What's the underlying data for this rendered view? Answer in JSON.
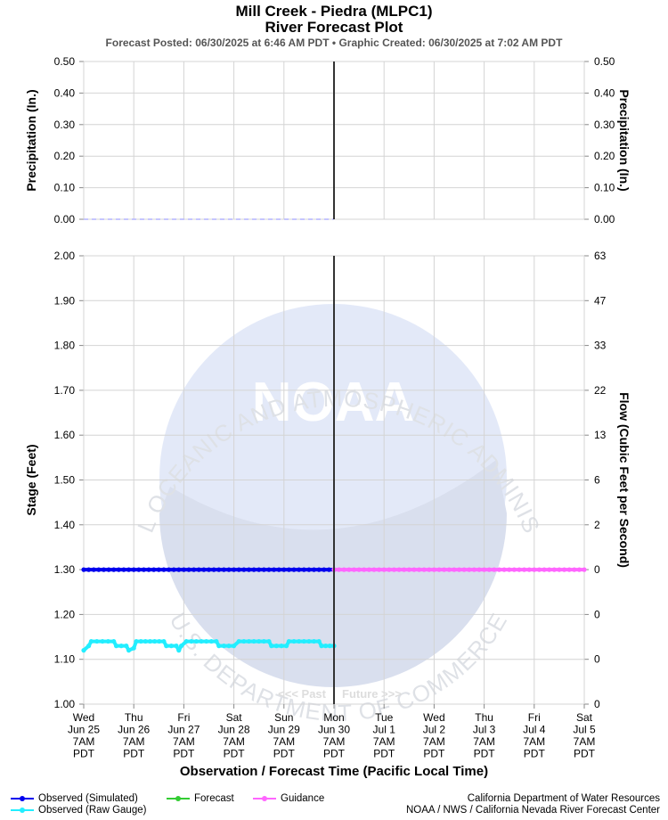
{
  "header": {
    "title": "Mill Creek - Piedra (MLPC1)",
    "subtitle": "River Forecast Plot",
    "posted_label": "Forecast Posted: 06/30/2025 at 6:46 AM PDT",
    "bullet": "•",
    "created_label": "Graphic Created: 06/30/2025 at 7:02 AM PDT"
  },
  "chart_data": [
    {
      "type": "line",
      "panel": "precipitation",
      "ylabel_left": "Precipitation (In.)",
      "ylabel_right": "Precipitation (In.)",
      "ylim": [
        0,
        0.5
      ],
      "yticks": [
        "0.00",
        "0.10",
        "0.20",
        "0.30",
        "0.40",
        "0.50"
      ],
      "grid": true,
      "series": [
        {
          "values": [
            [
              0,
              0
            ],
            [
              5,
              0
            ]
          ],
          "color": "#b4b4ff",
          "style": "dashed"
        }
      ]
    },
    {
      "type": "line",
      "panel": "stage",
      "ylabel_left": "Stage (Feet)",
      "ylabel_right": "Flow (Cubic Feet per Second)",
      "xlabel": "Observation / Forecast Time (Pacific Local Time)",
      "ylim": [
        1.0,
        2.0
      ],
      "yticks": [
        "1.00",
        "1.10",
        "1.20",
        "1.30",
        "1.40",
        "1.50",
        "1.60",
        "1.70",
        "1.80",
        "1.90",
        "2.00"
      ],
      "yticks_right": [
        "0",
        "0",
        "0",
        "0",
        "2",
        "6",
        "13",
        "22",
        "33",
        "47",
        "63"
      ],
      "x_categories": [
        {
          "day": "Wed",
          "date": "Jun 25",
          "time": "7AM",
          "tz": "PDT"
        },
        {
          "day": "Thu",
          "date": "Jun 26",
          "time": "7AM",
          "tz": "PDT"
        },
        {
          "day": "Fri",
          "date": "Jun 27",
          "time": "7AM",
          "tz": "PDT"
        },
        {
          "day": "Sat",
          "date": "Jun 28",
          "time": "7AM",
          "tz": "PDT"
        },
        {
          "day": "Sun",
          "date": "Jun 29",
          "time": "7AM",
          "tz": "PDT"
        },
        {
          "day": "Mon",
          "date": "Jun 30",
          "time": "7AM",
          "tz": "PDT"
        },
        {
          "day": "Tue",
          "date": "Jul 1",
          "time": "7AM",
          "tz": "PDT"
        },
        {
          "day": "Wed",
          "date": "Jul 2",
          "time": "7AM",
          "tz": "PDT"
        },
        {
          "day": "Thu",
          "date": "Jul 3",
          "time": "7AM",
          "tz": "PDT"
        },
        {
          "day": "Fri",
          "date": "Jul 4",
          "time": "7AM",
          "tz": "PDT"
        },
        {
          "day": "Sat",
          "date": "Jul 5",
          "time": "7AM",
          "tz": "PDT"
        }
      ],
      "now_index": 5,
      "past_label": "<<< Past",
      "future_label": "Future >>>",
      "grid": true,
      "series": [
        {
          "name": "Observed (Simulated)",
          "color": "#0000ee",
          "points": [
            [
              0,
              1.3
            ],
            [
              5,
              1.3
            ]
          ]
        },
        {
          "name": "Observed (Raw Gauge)",
          "color": "#22eeff",
          "points": [
            [
              0,
              1.12
            ],
            [
              0.1,
              1.13
            ],
            [
              0.15,
              1.14
            ],
            [
              0.6,
              1.14
            ],
            [
              0.65,
              1.13
            ],
            [
              0.85,
              1.13
            ],
            [
              0.9,
              1.12
            ],
            [
              1.0,
              1.125
            ],
            [
              1.05,
              1.14
            ],
            [
              1.6,
              1.14
            ],
            [
              1.65,
              1.13
            ],
            [
              1.85,
              1.13
            ],
            [
              1.9,
              1.12
            ],
            [
              1.95,
              1.13
            ],
            [
              2.05,
              1.14
            ],
            [
              2.65,
              1.14
            ],
            [
              2.7,
              1.13
            ],
            [
              3.0,
              1.13
            ],
            [
              3.1,
              1.14
            ],
            [
              3.7,
              1.14
            ],
            [
              3.75,
              1.13
            ],
            [
              4.05,
              1.13
            ],
            [
              4.1,
              1.14
            ],
            [
              4.7,
              1.14
            ],
            [
              4.75,
              1.13
            ],
            [
              5.0,
              1.13
            ]
          ]
        },
        {
          "name": "Forecast",
          "color": "#33cc33",
          "points": []
        },
        {
          "name": "Guidance",
          "color": "#ff66ff",
          "points": [
            [
              5,
              1.3
            ],
            [
              10,
              1.3
            ]
          ]
        }
      ]
    }
  ],
  "legend": [
    {
      "label": "Observed (Simulated)",
      "color": "#0000ee"
    },
    {
      "label": "Observed (Raw Gauge)",
      "color": "#22eeff"
    },
    {
      "label": "Forecast",
      "color": "#33cc33"
    },
    {
      "label": "Guidance",
      "color": "#ff66ff"
    }
  ],
  "credits": {
    "line1": "California Department of Water Resources",
    "line2": "NOAA / NWS / California Nevada River Forecast Center"
  },
  "watermark": {
    "arc_text": "NATIONAL OCEANIC AND ATMOSPHERIC ADMINISTRATION",
    "bottom_text": "U.S. DEPARTMENT OF COMMERCE",
    "logo_text": "NOAA"
  }
}
